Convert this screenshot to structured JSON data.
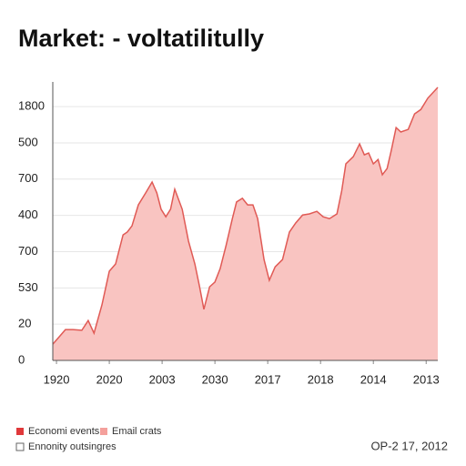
{
  "chart_data": {
    "type": "area",
    "title": "Market: - voltatilitully",
    "x": [
      -0.07,
      0.05,
      0.17,
      0.31,
      0.48,
      0.6,
      0.71,
      0.86,
      1.0,
      1.12,
      1.26,
      1.34,
      1.43,
      1.55,
      1.69,
      1.81,
      1.9,
      1.98,
      2.07,
      2.16,
      2.24,
      2.38,
      2.5,
      2.62,
      2.71,
      2.79,
      2.9,
      3.0,
      3.1,
      3.21,
      3.33,
      3.41,
      3.52,
      3.62,
      3.72,
      3.81,
      3.93,
      4.03,
      4.14,
      4.28,
      4.41,
      4.53,
      4.66,
      4.79,
      4.93,
      5.05,
      5.17,
      5.31,
      5.4,
      5.48,
      5.62,
      5.74,
      5.83,
      5.91,
      6.0,
      6.09,
      6.17,
      6.26,
      6.34,
      6.43,
      6.52,
      6.66,
      6.78,
      6.9,
      7.03,
      7.22
    ],
    "series": [
      {
        "color": "#e05a55",
        "fill": "#f9c4c1",
        "values": [
          0.45,
          0.65,
          0.85,
          0.85,
          0.83,
          1.1,
          0.75,
          1.53,
          2.46,
          2.66,
          3.46,
          3.54,
          3.71,
          4.29,
          4.62,
          4.92,
          4.62,
          4.17,
          3.96,
          4.17,
          4.72,
          4.17,
          3.29,
          2.66,
          2.03,
          1.41,
          2.03,
          2.16,
          2.53,
          3.16,
          3.91,
          4.37,
          4.47,
          4.29,
          4.29,
          3.91,
          2.78,
          2.21,
          2.58,
          2.78,
          3.54,
          3.79,
          4.01,
          4.04,
          4.11,
          3.96,
          3.91,
          4.04,
          4.67,
          5.42,
          5.62,
          5.97,
          5.67,
          5.72,
          5.42,
          5.54,
          5.12,
          5.29,
          5.79,
          6.42,
          6.3,
          6.37,
          6.8,
          6.92,
          7.23,
          7.53
        ]
      }
    ],
    "xlim": [
      -0.07,
      7.22
    ],
    "xticks": [
      {
        "value": 0,
        "label": "1920"
      },
      {
        "value": 1,
        "label": "2020"
      },
      {
        "value": 2,
        "label": "2003"
      },
      {
        "value": 3,
        "label": "2030"
      },
      {
        "value": 4,
        "label": "2017"
      },
      {
        "value": 5,
        "label": "2018"
      },
      {
        "value": 6,
        "label": "2014"
      },
      {
        "value": 7,
        "label": "2013"
      }
    ],
    "ylim": [
      0,
      7.68
    ],
    "yticks": [
      0,
      {
        "value": 1,
        "label": "20"
      },
      {
        "value": 2,
        "label": "530"
      },
      {
        "value": 3,
        "label": "700"
      },
      {
        "value": 4,
        "label": "400"
      },
      {
        "value": 5,
        "label": "700"
      },
      {
        "value": 6,
        "label": "500"
      },
      {
        "value": 7,
        "label": "1800"
      }
    ],
    "grid": true,
    "legend": [
      {
        "label": "Economi events",
        "color": "#e0383a",
        "style": "filled"
      },
      {
        "label": "Email crats",
        "color": "#f4a09c",
        "style": "filled"
      },
      {
        "label": "Ennonity outsingres",
        "color": "#666666",
        "style": "hollow"
      }
    ],
    "date": "OP-2 17, 2012"
  }
}
